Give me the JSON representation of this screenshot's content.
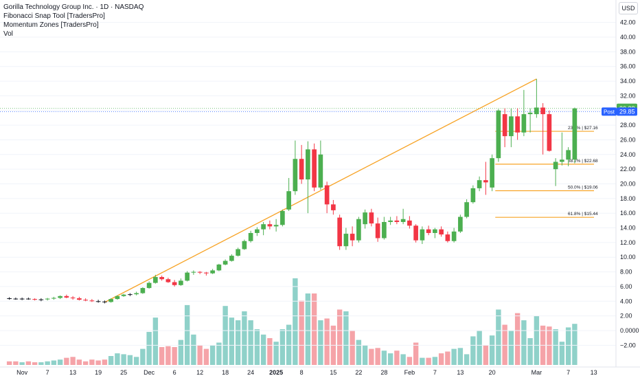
{
  "legend": {
    "title": "Gorilla Technology Group Inc. · 1D · NASDAQ",
    "indicator1": "Fibonacci Snap Tool [TradersPro]",
    "indicator2": "Momentum Zones [TradersPro]",
    "indicator3": "Vol"
  },
  "currency": "USD",
  "colors": {
    "up": "#4caf50",
    "down": "#f23645",
    "neutral": "#ffeb3b",
    "vol_up": "#8fd1c9",
    "vol_down": "#f5a3a8",
    "fib_line": "#f7a325",
    "price_badge": "#4caf50",
    "post_badge": "#2962ff"
  },
  "chart_data": {
    "type": "candlestick",
    "y_ticks": [
      "−2.00",
      "0.0000",
      "2.00",
      "4.00",
      "6.00",
      "8.00",
      "10.00",
      "12.00",
      "14.00",
      "16.00",
      "18.00",
      "20.00",
      "22.00",
      "24.00",
      "26.00",
      "28.00",
      "30.00",
      "32.00",
      "34.00",
      "36.00",
      "38.00",
      "40.00",
      "42.00"
    ],
    "ylim": [
      -3,
      43
    ],
    "x_labels": [
      {
        "label": "Nov",
        "i": 2
      },
      {
        "label": "7",
        "i": 6
      },
      {
        "label": "13",
        "i": 10
      },
      {
        "label": "19",
        "i": 14
      },
      {
        "label": "25",
        "i": 18
      },
      {
        "label": "Dec",
        "i": 22
      },
      {
        "label": "6",
        "i": 26
      },
      {
        "label": "12",
        "i": 30
      },
      {
        "label": "18",
        "i": 34
      },
      {
        "label": "24",
        "i": 38
      },
      {
        "label": "2025",
        "i": 42,
        "bold": true
      },
      {
        "label": "8",
        "i": 46
      },
      {
        "label": "15",
        "i": 51
      },
      {
        "label": "22",
        "i": 55
      },
      {
        "label": "28",
        "i": 59
      },
      {
        "label": "Feb",
        "i": 63
      },
      {
        "label": "7",
        "i": 67
      },
      {
        "label": "13",
        "i": 71
      },
      {
        "label": "20",
        "i": 76
      },
      {
        "label": "Mar",
        "i": 83
      },
      {
        "label": "7",
        "i": 88
      },
      {
        "label": "13",
        "i": 92
      }
    ],
    "candles": [
      {
        "o": 4.4,
        "h": 4.55,
        "l": 4.2,
        "c": 4.35,
        "v": 0.4
      },
      {
        "o": 4.35,
        "h": 4.5,
        "l": 4.2,
        "c": 4.3,
        "v": 0.4
      },
      {
        "o": 4.3,
        "h": 4.5,
        "l": 4.15,
        "c": 4.35,
        "v": 0.3
      },
      {
        "o": 4.35,
        "h": 4.5,
        "l": 4.2,
        "c": 4.3,
        "v": 0.4
      },
      {
        "o": 4.3,
        "h": 4.4,
        "l": 4.1,
        "c": 4.2,
        "v": 0.3
      },
      {
        "o": 4.2,
        "h": 4.4,
        "l": 4.0,
        "c": 4.25,
        "v": 0.3
      },
      {
        "o": 4.25,
        "h": 4.45,
        "l": 4.1,
        "c": 4.35,
        "v": 0.4
      },
      {
        "o": 4.35,
        "h": 4.6,
        "l": 4.2,
        "c": 4.45,
        "v": 0.5
      },
      {
        "o": 4.45,
        "h": 4.8,
        "l": 4.3,
        "c": 4.7,
        "v": 0.6
      },
      {
        "o": 4.7,
        "h": 4.9,
        "l": 4.4,
        "c": 4.5,
        "v": 0.8
      },
      {
        "o": 4.5,
        "h": 4.7,
        "l": 4.2,
        "c": 4.4,
        "v": 0.9
      },
      {
        "o": 4.4,
        "h": 4.6,
        "l": 4.1,
        "c": 4.2,
        "v": 0.6
      },
      {
        "o": 4.2,
        "h": 4.4,
        "l": 4.0,
        "c": 4.1,
        "v": 0.4
      },
      {
        "o": 4.1,
        "h": 4.3,
        "l": 3.9,
        "c": 4.0,
        "v": 0.6
      },
      {
        "o": 4.0,
        "h": 4.2,
        "l": 3.8,
        "c": 3.95,
        "v": 0.5
      },
      {
        "o": 3.95,
        "h": 4.1,
        "l": 3.7,
        "c": 3.9,
        "v": 0.6
      },
      {
        "o": 3.9,
        "h": 4.4,
        "l": 3.8,
        "c": 4.3,
        "v": 1.0
      },
      {
        "o": 4.3,
        "h": 4.8,
        "l": 4.2,
        "c": 4.7,
        "v": 1.3
      },
      {
        "o": 4.7,
        "h": 5.0,
        "l": 4.6,
        "c": 4.9,
        "v": 1.2
      },
      {
        "o": 4.9,
        "h": 5.1,
        "l": 4.7,
        "c": 4.95,
        "v": 1.1
      },
      {
        "o": 4.95,
        "h": 5.3,
        "l": 4.8,
        "c": 5.1,
        "v": 0.9
      },
      {
        "o": 5.1,
        "h": 5.9,
        "l": 5.0,
        "c": 5.8,
        "v": 1.8
      },
      {
        "o": 5.8,
        "h": 6.7,
        "l": 5.7,
        "c": 6.5,
        "v": 3.7
      },
      {
        "o": 6.5,
        "h": 7.6,
        "l": 6.4,
        "c": 7.3,
        "v": 5.3
      },
      {
        "o": 7.3,
        "h": 7.5,
        "l": 6.8,
        "c": 7.0,
        "v": 2.0
      },
      {
        "o": 7.0,
        "h": 7.2,
        "l": 6.5,
        "c": 6.6,
        "v": 2.1
      },
      {
        "o": 6.6,
        "h": 6.9,
        "l": 6.0,
        "c": 6.2,
        "v": 2.0
      },
      {
        "o": 6.2,
        "h": 7.1,
        "l": 6.1,
        "c": 6.8,
        "v": 2.8
      },
      {
        "o": 6.8,
        "h": 8.1,
        "l": 6.7,
        "c": 7.9,
        "v": 6.7
      },
      {
        "o": 7.9,
        "h": 8.2,
        "l": 7.6,
        "c": 8.0,
        "v": 3.4
      },
      {
        "o": 8.0,
        "h": 8.1,
        "l": 7.7,
        "c": 7.9,
        "v": 2.2
      },
      {
        "o": 7.9,
        "h": 8.0,
        "l": 7.5,
        "c": 7.8,
        "v": 1.8
      },
      {
        "o": 7.8,
        "h": 8.4,
        "l": 7.7,
        "c": 8.2,
        "v": 2.2
      },
      {
        "o": 8.2,
        "h": 9.1,
        "l": 8.1,
        "c": 9.0,
        "v": 2.5
      },
      {
        "o": 9.0,
        "h": 9.7,
        "l": 8.9,
        "c": 9.5,
        "v": 6.6
      },
      {
        "o": 9.5,
        "h": 10.4,
        "l": 9.4,
        "c": 10.2,
        "v": 5.3
      },
      {
        "o": 10.2,
        "h": 11.3,
        "l": 10.1,
        "c": 11.1,
        "v": 5.0
      },
      {
        "o": 11.1,
        "h": 12.4,
        "l": 11.0,
        "c": 12.2,
        "v": 6.0
      },
      {
        "o": 12.2,
        "h": 13.6,
        "l": 12.0,
        "c": 13.3,
        "v": 5.0
      },
      {
        "o": 13.3,
        "h": 14.1,
        "l": 12.9,
        "c": 13.8,
        "v": 4.0
      },
      {
        "o": 13.8,
        "h": 14.8,
        "l": 13.0,
        "c": 14.5,
        "v": 3.4
      },
      {
        "o": 14.5,
        "h": 15.0,
        "l": 13.8,
        "c": 14.2,
        "v": 3.0
      },
      {
        "o": 14.2,
        "h": 15.2,
        "l": 13.5,
        "c": 14.4,
        "v": 2.6
      },
      {
        "o": 14.4,
        "h": 16.5,
        "l": 14.2,
        "c": 16.3,
        "v": 4.0
      },
      {
        "o": 16.5,
        "h": 20.8,
        "l": 16.3,
        "c": 19.0,
        "v": 4.5
      },
      {
        "o": 19.0,
        "h": 25.9,
        "l": 18.5,
        "c": 23.4,
        "v": 9.7
      },
      {
        "o": 23.4,
        "h": 25.3,
        "l": 20.0,
        "c": 20.6,
        "v": 7.2
      },
      {
        "o": 20.6,
        "h": 25.8,
        "l": 16.0,
        "c": 24.7,
        "v": 8.0
      },
      {
        "o": 24.7,
        "h": 25.5,
        "l": 19.0,
        "c": 19.5,
        "v": 8.0
      },
      {
        "o": 19.5,
        "h": 25.9,
        "l": 19.2,
        "c": 24.0,
        "v": 5.0
      },
      {
        "o": 19.8,
        "h": 20.3,
        "l": 16.0,
        "c": 17.2,
        "v": 5.2
      },
      {
        "o": 17.2,
        "h": 17.8,
        "l": 15.8,
        "c": 16.4,
        "v": 4.4
      },
      {
        "o": 15.4,
        "h": 15.8,
        "l": 11.0,
        "c": 11.5,
        "v": 6.2
      },
      {
        "o": 11.5,
        "h": 14.0,
        "l": 11.0,
        "c": 13.2,
        "v": 6.0
      },
      {
        "o": 13.2,
        "h": 14.2,
        "l": 11.5,
        "c": 12.3,
        "v": 3.8
      },
      {
        "o": 12.3,
        "h": 15.5,
        "l": 12.0,
        "c": 15.2,
        "v": 2.8
      },
      {
        "o": 14.5,
        "h": 16.5,
        "l": 13.9,
        "c": 16.1,
        "v": 2.2
      },
      {
        "o": 16.1,
        "h": 16.6,
        "l": 14.2,
        "c": 14.6,
        "v": 1.8
      },
      {
        "o": 14.6,
        "h": 15.4,
        "l": 12.1,
        "c": 12.6,
        "v": 1.9
      },
      {
        "o": 12.6,
        "h": 15.5,
        "l": 12.4,
        "c": 14.8,
        "v": 1.6
      },
      {
        "o": 14.8,
        "h": 15.5,
        "l": 14.4,
        "c": 15.0,
        "v": 1.3
      },
      {
        "o": 15.0,
        "h": 15.6,
        "l": 14.5,
        "c": 14.8,
        "v": 1.6
      },
      {
        "o": 14.8,
        "h": 16.6,
        "l": 14.5,
        "c": 15.2,
        "v": 1.2
      },
      {
        "o": 15.0,
        "h": 15.6,
        "l": 13.9,
        "c": 14.3,
        "v": 0.9
      },
      {
        "o": 14.3,
        "h": 14.5,
        "l": 12.0,
        "c": 12.3,
        "v": 2.5
      },
      {
        "o": 12.3,
        "h": 14.2,
        "l": 11.8,
        "c": 13.8,
        "v": 0.8
      },
      {
        "o": 13.8,
        "h": 14.3,
        "l": 13.0,
        "c": 13.3,
        "v": 0.8
      },
      {
        "o": 13.3,
        "h": 14.0,
        "l": 12.6,
        "c": 13.8,
        "v": 0.9
      },
      {
        "o": 13.8,
        "h": 14.2,
        "l": 12.8,
        "c": 13.1,
        "v": 1.3
      },
      {
        "o": 13.1,
        "h": 13.5,
        "l": 12.0,
        "c": 12.2,
        "v": 1.5
      },
      {
        "o": 12.2,
        "h": 14.0,
        "l": 12.0,
        "c": 13.5,
        "v": 1.8
      },
      {
        "o": 13.5,
        "h": 15.8,
        "l": 13.3,
        "c": 15.5,
        "v": 1.9
      },
      {
        "o": 15.5,
        "h": 17.9,
        "l": 15.3,
        "c": 17.5,
        "v": 1.2
      },
      {
        "o": 17.5,
        "h": 19.8,
        "l": 17.3,
        "c": 19.4,
        "v": 3.2
      },
      {
        "o": 19.4,
        "h": 21.0,
        "l": 19.0,
        "c": 20.5,
        "v": 3.8
      },
      {
        "o": 20.5,
        "h": 23.0,
        "l": 18.5,
        "c": 20.2,
        "v": 2.2
      },
      {
        "o": 19.5,
        "h": 24.0,
        "l": 19.0,
        "c": 23.5,
        "v": 3.3
      },
      {
        "o": 23.5,
        "h": 30.2,
        "l": 23.0,
        "c": 30.0,
        "v": 6.2
      },
      {
        "o": 29.5,
        "h": 30.3,
        "l": 25.0,
        "c": 26.5,
        "v": 4.5
      },
      {
        "o": 26.5,
        "h": 30.3,
        "l": 25.0,
        "c": 29.2,
        "v": 3.8
      },
      {
        "o": 29.2,
        "h": 30.3,
        "l": 26.0,
        "c": 27.0,
        "v": 5.8
      },
      {
        "o": 27.0,
        "h": 32.8,
        "l": 26.5,
        "c": 29.5,
        "v": 5.0
      },
      {
        "o": 29.5,
        "h": 30.3,
        "l": 27.0,
        "c": 29.7,
        "v": 3.0
      },
      {
        "o": 29.5,
        "h": 34.3,
        "l": 29.0,
        "c": 30.4,
        "v": 5.5
      },
      {
        "o": 30.4,
        "h": 31.0,
        "l": 24.0,
        "c": 29.5,
        "v": 4.4
      },
      {
        "o": 29.5,
        "h": 30.0,
        "l": 24.4,
        "c": 24.5,
        "v": 4.3
      },
      {
        "o": 22.0,
        "h": 23.5,
        "l": 19.7,
        "c": 23.0,
        "v": 4.0
      },
      {
        "o": 23.0,
        "h": 27.0,
        "l": 22.5,
        "c": 23.3,
        "v": 2.6
      },
      {
        "o": 23.3,
        "h": 25.0,
        "l": 22.4,
        "c": 24.6,
        "v": 4.2
      },
      {
        "o": 23.3,
        "h": 30.4,
        "l": 22.8,
        "c": 30.28,
        "v": 4.6
      }
    ],
    "x_slots": 96,
    "trendline": {
      "from": {
        "i": 15,
        "price": 3.85
      },
      "to": {
        "i": 83,
        "price": 34.3
      }
    },
    "fib_levels": [
      {
        "label": "23.6% | $27.16",
        "price": 27.16
      },
      {
        "label": "38.2% | $22.68",
        "price": 22.68
      },
      {
        "label": "50.0% | $19.06",
        "price": 19.06
      },
      {
        "label": "61.8% | $15.44",
        "price": 15.44
      }
    ],
    "fib_start_i": 77,
    "last_price": {
      "label": "30.28",
      "price": 30.28
    },
    "post_price": {
      "tag": "Post",
      "label": "29.85",
      "price": 29.85
    }
  }
}
